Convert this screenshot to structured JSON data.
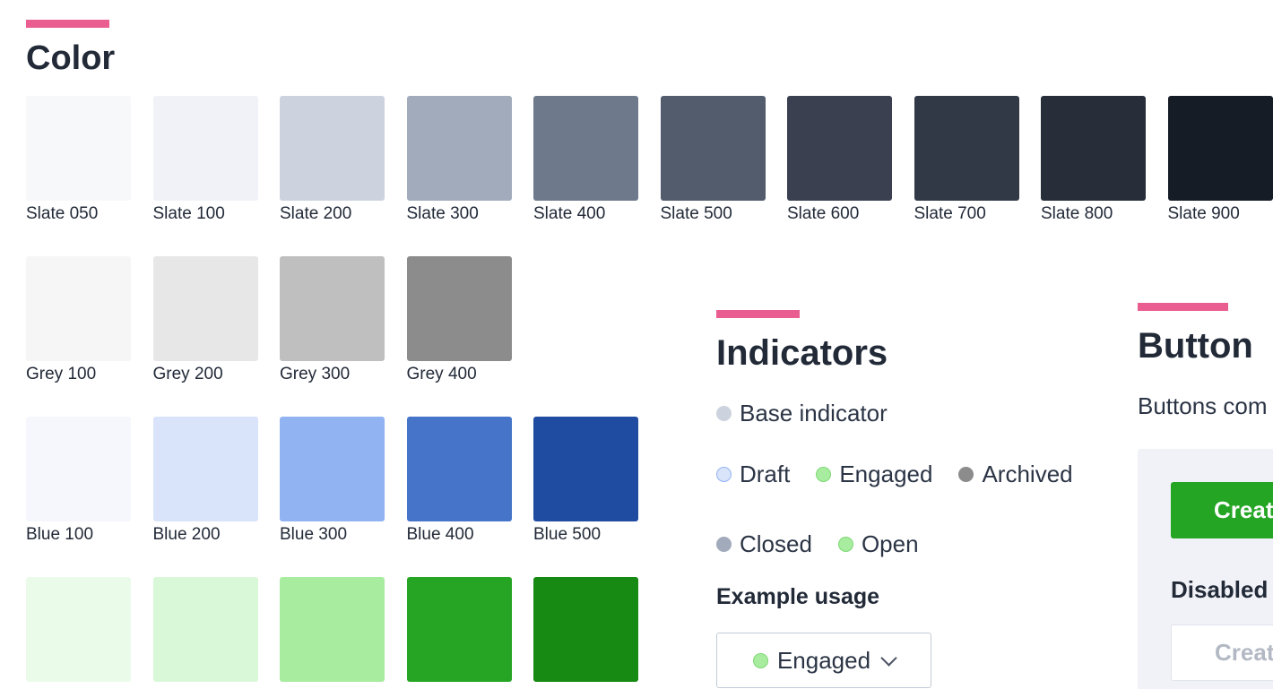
{
  "color": {
    "title": "Color",
    "rows": [
      [
        {
          "label": "Slate 050",
          "hex": "#f7f8fa"
        },
        {
          "label": "Slate 100",
          "hex": "#f0f2f7"
        },
        {
          "label": "Slate 200",
          "hex": "#cdd3de"
        },
        {
          "label": "Slate 300",
          "hex": "#a2abbb"
        },
        {
          "label": "Slate 400",
          "hex": "#6e7a8c"
        },
        {
          "label": "Slate 500",
          "hex": "#525c6c"
        },
        {
          "label": "Slate 600",
          "hex": "#3a4050"
        },
        {
          "label": "Slate 700",
          "hex": "#313947"
        },
        {
          "label": "Slate 800",
          "hex": "#272d39"
        },
        {
          "label": "Slate 900",
          "hex": "#161c25"
        }
      ],
      [
        {
          "label": "Grey 100",
          "hex": "#f6f6f6"
        },
        {
          "label": "Grey 200",
          "hex": "#e7e7e7"
        },
        {
          "label": "Grey 300",
          "hex": "#bfbfbf"
        },
        {
          "label": "Grey 400",
          "hex": "#8c8c8c"
        }
      ],
      [
        {
          "label": "Blue 100",
          "hex": "#f5f7fc"
        },
        {
          "label": "Blue 200",
          "hex": "#d9e3f9"
        },
        {
          "label": "Blue 300",
          "hex": "#91b3f2"
        },
        {
          "label": "Blue 400",
          "hex": "#4574c9"
        },
        {
          "label": "Blue 500",
          "hex": "#1f4ca0"
        }
      ],
      [
        {
          "label": "",
          "hex": "#ebfbea"
        },
        {
          "label": "",
          "hex": "#d9f8d7"
        },
        {
          "label": "",
          "hex": "#a8eca0"
        },
        {
          "label": "",
          "hex": "#25a523"
        },
        {
          "label": "",
          "hex": "#168a13"
        }
      ]
    ]
  },
  "indicators": {
    "title": "Indicators",
    "base": {
      "label": "Base indicator",
      "color": "#cdd3de"
    },
    "row2": [
      {
        "label": "Draft",
        "color": "#d9e3f9",
        "border": "#91b3f2"
      },
      {
        "label": "Engaged",
        "color": "#a8eca0",
        "border": "#7dd874"
      },
      {
        "label": "Archived",
        "color": "#8c8c8c",
        "border": "#8c8c8c"
      }
    ],
    "row3": [
      {
        "label": "Closed",
        "color": "#a2abbb",
        "border": "#a2abbb"
      },
      {
        "label": "Open",
        "color": "#a8eca0",
        "border": "#7dd874"
      }
    ],
    "example_label": "Example usage",
    "example_value": "Engaged"
  },
  "button": {
    "title": "Button",
    "description": "Buttons com",
    "create_label": "Creat",
    "disabled_label": "Disabled",
    "disabled_button_label": "Creat",
    "primary_color": "#24a524"
  },
  "accent_color": "#ea5d91"
}
